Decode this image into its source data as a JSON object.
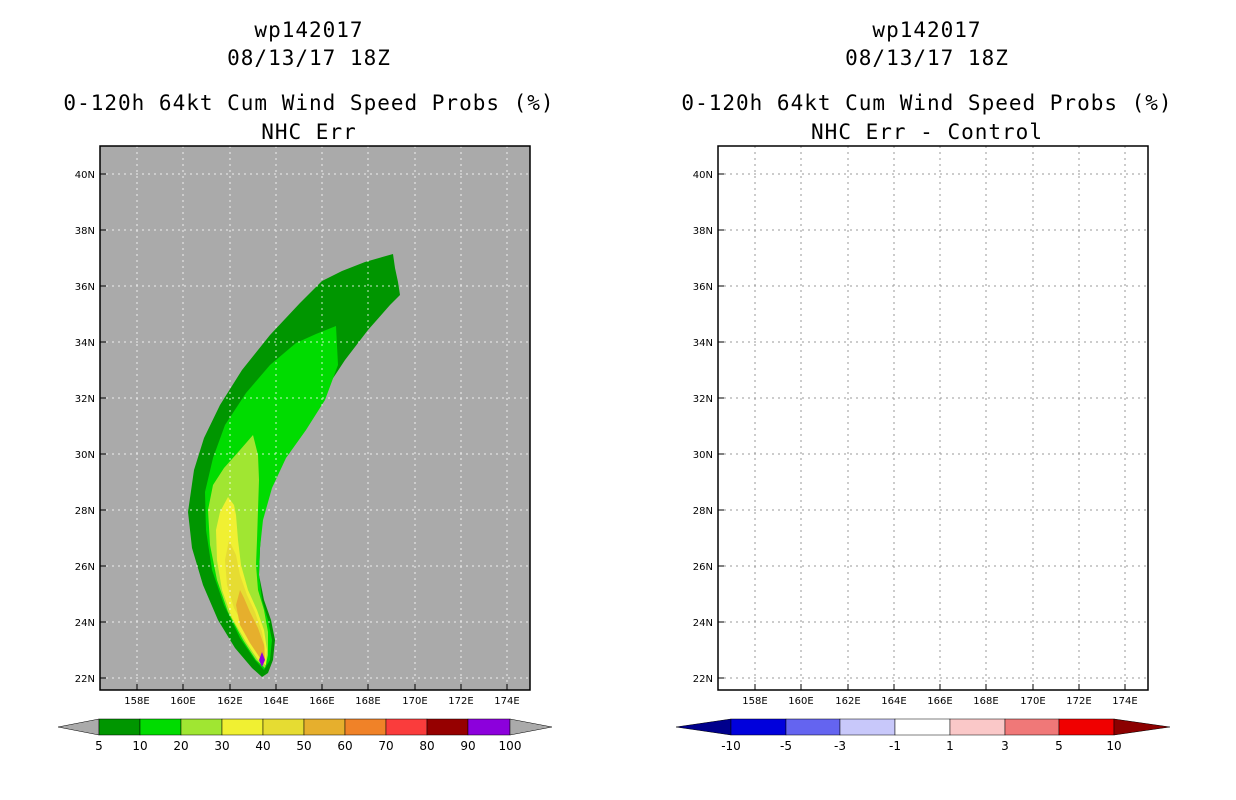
{
  "left_panel": {
    "storm_id": "wp142017",
    "datetime": "08/13/17 18Z",
    "product": "0-120h 64kt Cum Wind Speed Probs (%)",
    "subtitle": "NHC Err",
    "lat_labels": [
      "40N",
      "38N",
      "36N",
      "34N",
      "32N",
      "30N",
      "28N",
      "26N",
      "24N",
      "22N"
    ],
    "lon_labels": [
      "158E",
      "160E",
      "162E",
      "164E",
      "166E",
      "168E",
      "170E",
      "172E",
      "174E"
    ],
    "colorbar": {
      "labels": [
        "5",
        "10",
        "20",
        "30",
        "40",
        "50",
        "60",
        "70",
        "80",
        "90",
        "100"
      ],
      "colors": [
        "#009600",
        "#00dc00",
        "#a0e632",
        "#f0f032",
        "#e6dc32",
        "#e6af2d",
        "#f08228",
        "#fa3c3c",
        "#960000",
        "#8c00dc"
      ],
      "end_color": "#aaaaaa"
    },
    "contour_colors": {
      "background": "#aaaaaa",
      "p5": "#009600",
      "p10": "#00dc00",
      "p20": "#a0e632",
      "p30": "#f0f032",
      "p40": "#e6dc32",
      "p50": "#e6af2d",
      "p90": "#8c00dc"
    }
  },
  "right_panel": {
    "storm_id": "wp142017",
    "datetime": "08/13/17 18Z",
    "product": "0-120h 64kt Cum Wind Speed Probs (%)",
    "subtitle": "NHC Err - Control",
    "lat_labels": [
      "40N",
      "38N",
      "36N",
      "34N",
      "32N",
      "30N",
      "28N",
      "26N",
      "24N",
      "22N"
    ],
    "lon_labels": [
      "158E",
      "160E",
      "162E",
      "164E",
      "166E",
      "168E",
      "170E",
      "172E",
      "174E"
    ],
    "colorbar": {
      "labels": [
        "-10",
        "-5",
        "-3",
        "-1",
        "1",
        "3",
        "5",
        "10"
      ],
      "colors": [
        "#0000dc",
        "#6464f0",
        "#c8c8fa",
        "#ffffff",
        "#fac8c8",
        "#f07878",
        "#f00000"
      ],
      "left_end_color": "#00008c",
      "right_end_color": "#8c0000"
    }
  }
}
